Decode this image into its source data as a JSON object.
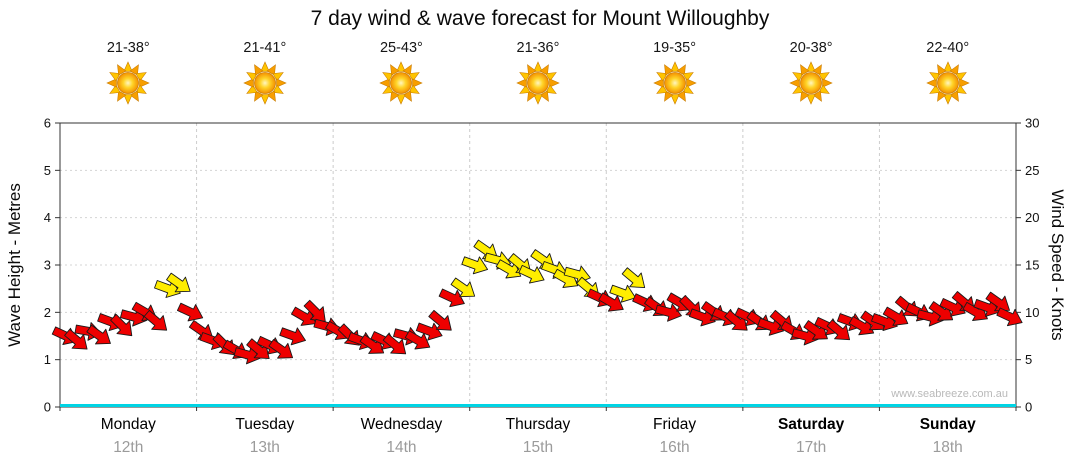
{
  "title": "7 day wind & wave forecast for Mount Willoughby",
  "watermark": "www.seabreeze.com.au",
  "days": [
    {
      "name": "Monday",
      "date": "12th",
      "temp": "21-38°",
      "icon": "sun-icon",
      "weekend": false
    },
    {
      "name": "Tuesday",
      "date": "13th",
      "temp": "21-41°",
      "icon": "sun-icon",
      "weekend": false
    },
    {
      "name": "Wednesday",
      "date": "14th",
      "temp": "25-43°",
      "icon": "sun-icon",
      "weekend": false
    },
    {
      "name": "Thursday",
      "date": "15th",
      "temp": "21-36°",
      "icon": "sun-icon",
      "weekend": false
    },
    {
      "name": "Friday",
      "date": "16th",
      "temp": "19-35°",
      "icon": "sun-icon",
      "weekend": false
    },
    {
      "name": "Saturday",
      "date": "17th",
      "temp": "20-38°",
      "icon": "sun-icon",
      "weekend": true
    },
    {
      "name": "Sunday",
      "date": "18th",
      "temp": "22-40°",
      "icon": "sun-icon",
      "weekend": true
    }
  ],
  "chart_data": {
    "type": "scatter",
    "title": "7 day wind & wave forecast for Mount Willoughby",
    "ylabel_left": "Wave Height - Metres",
    "ylabel_right": "Wind Speed - Knots",
    "ylim_left": [
      0,
      6
    ],
    "ylim_right": [
      0,
      30
    ],
    "left_ticks": [
      0,
      1,
      2,
      3,
      4,
      5,
      6
    ],
    "right_ticks": [
      0,
      5,
      10,
      15,
      20,
      25,
      30
    ],
    "grid": true,
    "x_axis": {
      "unit": "hours",
      "start_hour": 1,
      "interval_hours": 2,
      "total_days": 7
    },
    "series": [
      {
        "name": "Wind Speed",
        "axis": "right",
        "style": "wind-arrows",
        "units": "knots",
        "color_rules": {
          "red": "#ee0000",
          "yellow": "#ffed00",
          "yellow_min_knots": 12
        },
        "speeds_knots": [
          7.5,
          7,
          8,
          7.5,
          9,
          8.5,
          9.5,
          10,
          9,
          12.5,
          13,
          10,
          8,
          7,
          6.5,
          6,
          5.5,
          6,
          6.5,
          6,
          7.5,
          9.5,
          10,
          8.5,
          8,
          7.5,
          7,
          6.5,
          7,
          6.5,
          7.5,
          7,
          8,
          9,
          11.5,
          12.5,
          15,
          16.5,
          15.5,
          14.5,
          15,
          14,
          15.5,
          14.5,
          13.5,
          14,
          12.5,
          11.5,
          11,
          12,
          13.5,
          11,
          10.5,
          10,
          11,
          10.5,
          9.5,
          10,
          9.5,
          9,
          9.5,
          9,
          8.5,
          9,
          8,
          7.5,
          8,
          8.5,
          8,
          9,
          8.5,
          9,
          9,
          9.5,
          10.5,
          10,
          9.5,
          10,
          10.5,
          11,
          10,
          10.5,
          11,
          9.5
        ],
        "rotations_deg_screen": [
          25,
          40,
          10,
          35,
          20,
          45,
          15,
          30,
          40,
          20,
          35,
          25,
          35,
          20,
          45,
          30,
          15,
          40,
          25,
          35,
          20,
          30,
          45,
          15,
          30,
          45,
          20,
          35,
          25,
          40,
          15,
          30,
          20,
          40,
          25,
          35,
          20,
          35,
          15,
          30,
          40,
          25,
          35,
          20,
          30,
          15,
          40,
          25,
          30,
          20,
          40,
          25,
          35,
          15,
          30,
          45,
          20,
          35,
          25,
          40,
          25,
          35,
          20,
          40,
          30,
          15,
          35,
          25,
          40,
          20,
          30,
          35,
          20,
          30,
          40,
          25,
          15,
          35,
          25,
          40,
          30,
          20,
          35,
          25
        ]
      },
      {
        "name": "Wave Height",
        "axis": "left",
        "style": "line",
        "units": "metres",
        "color": "#00d4e4",
        "x_frac": [
          0,
          1
        ],
        "values_metres": [
          0,
          0
        ]
      }
    ]
  }
}
